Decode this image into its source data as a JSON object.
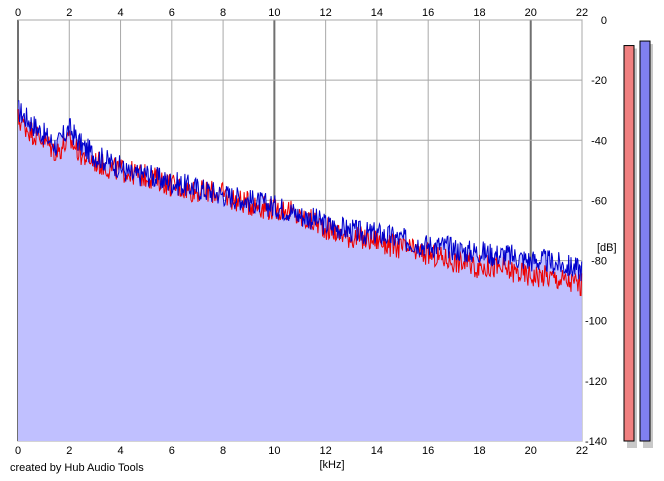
{
  "chart_data": {
    "type": "line",
    "title": "",
    "xlabel": "[kHz]",
    "ylabel": "[dB]",
    "xlim": [
      0,
      22
    ],
    "ylim": [
      -140,
      0
    ],
    "x_ticks": [
      0,
      2,
      4,
      6,
      8,
      10,
      12,
      14,
      16,
      18,
      20,
      22
    ],
    "y_ticks": [
      0,
      -20,
      -40,
      -60,
      -80,
      -100,
      -120,
      -140
    ],
    "x_tick_labels": [
      "0",
      "2",
      "4",
      "6",
      "8",
      "10",
      "12",
      "14",
      "16",
      "18",
      "20",
      "22"
    ],
    "y_tick_labels": [
      "0",
      "-20",
      "-40",
      "-60",
      "-80",
      "-100",
      "-120",
      "-140"
    ],
    "grid": true,
    "series": [
      {
        "color": "#0000cc",
        "fill": "#c0c0ff",
        "x": [
          0,
          0.5,
          1,
          1.5,
          2,
          2.5,
          3,
          3.5,
          4,
          4.5,
          5,
          5.5,
          6,
          6.5,
          7,
          7.5,
          8,
          8.5,
          9,
          9.5,
          10,
          10.5,
          11,
          11.5,
          12,
          12.5,
          13,
          13.5,
          14,
          14.5,
          15,
          15.5,
          16,
          16.5,
          17,
          17.5,
          18,
          18.5,
          19,
          19.5,
          20,
          20.5,
          21,
          21.5,
          22
        ],
        "values": [
          -30,
          -34,
          -38,
          -42,
          -36,
          -42,
          -45,
          -47,
          -49,
          -52,
          -51,
          -53,
          -54,
          -55,
          -56,
          -57,
          -58,
          -59,
          -60,
          -61,
          -62,
          -63,
          -65,
          -66,
          -68,
          -69,
          -70,
          -71,
          -71,
          -72,
          -73,
          -74,
          -75,
          -75,
          -76,
          -77,
          -77,
          -78,
          -78,
          -79,
          -80,
          -80,
          -81,
          -82,
          -83
        ]
      },
      {
        "color": "#ee0000",
        "x": [
          0,
          0.5,
          1,
          1.5,
          2,
          2.5,
          3,
          3.5,
          4,
          4.5,
          5,
          5.5,
          6,
          6.5,
          7,
          7.5,
          8,
          8.5,
          9,
          9.5,
          10,
          10.5,
          11,
          11.5,
          12,
          12.5,
          13,
          13.5,
          14,
          14.5,
          15,
          15.5,
          16,
          16.5,
          17,
          17.5,
          18,
          18.5,
          19,
          19.5,
          20,
          20.5,
          21,
          21.5,
          22
        ],
        "values": [
          -33,
          -37,
          -40,
          -44,
          -40,
          -45,
          -47,
          -49,
          -50,
          -51,
          -52,
          -53,
          -55,
          -56,
          -57,
          -57,
          -58,
          -60,
          -61,
          -62,
          -63,
          -63,
          -66,
          -67,
          -69,
          -71,
          -72,
          -73,
          -73,
          -75,
          -76,
          -77,
          -78,
          -79,
          -80,
          -81,
          -82,
          -82,
          -83,
          -84,
          -85,
          -85,
          -86,
          -87,
          -88
        ]
      }
    ],
    "level_meters": [
      {
        "color": "#f08080",
        "level_db": -8.5
      },
      {
        "color": "#8080f0",
        "level_db": -7.0
      }
    ]
  },
  "credit": "created by Hub Audio Tools"
}
